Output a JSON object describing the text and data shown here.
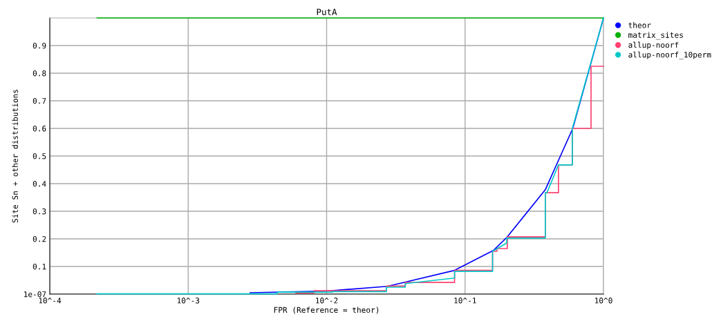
{
  "chart_data": {
    "type": "line",
    "title": "PutA",
    "xlabel": "FPR (Reference = theor)",
    "ylabel": "Site Sn + other distributions",
    "log": "x",
    "xlim": [
      0.0001,
      1
    ],
    "ylim": [
      1e-07,
      1
    ],
    "xticks": [
      {
        "value": 0.0001,
        "label": "10^-4"
      },
      {
        "value": 0.001,
        "label": "10^-3"
      },
      {
        "value": 0.01,
        "label": "10^-2"
      },
      {
        "value": 0.1,
        "label": "10^-1"
      },
      {
        "value": 1,
        "label": "10^0"
      }
    ],
    "yticks": [
      1e-07,
      0.1,
      0.2,
      0.3,
      0.4,
      0.5,
      0.6,
      0.7,
      0.8,
      0.9
    ],
    "grid": true,
    "legend": "top right",
    "marker": "none",
    "line_style": "solid",
    "series": [
      {
        "name": "theor",
        "color": "#0000ff",
        "x": [
          0.0028,
          0.01,
          0.0275,
          0.084,
          0.16,
          0.2,
          0.38,
          0.6,
          1.0
        ],
        "values": [
          0.005,
          0.011,
          0.028,
          0.086,
          0.158,
          0.205,
          0.378,
          0.6,
          1.0
        ]
      },
      {
        "name": "matrix_sites",
        "color": "#00b000",
        "x": [
          0.00022,
          1.0
        ],
        "values": [
          1.0,
          1.0
        ]
      },
      {
        "name": "allup-noorf",
        "color": "#ff4070",
        "x": [
          0.006,
          0.0081,
          0.0081,
          0.027,
          0.027,
          0.037,
          0.037,
          0.084,
          0.084,
          0.158,
          0.158,
          0.17,
          0.17,
          0.202,
          0.202,
          0.38,
          0.38,
          0.473,
          0.473,
          0.596,
          0.596,
          0.813,
          0.813,
          1.0
        ],
        "values": [
          0.004,
          0.004,
          0.012,
          0.012,
          0.029,
          0.029,
          0.042,
          0.042,
          0.086,
          0.086,
          0.155,
          0.155,
          0.165,
          0.165,
          0.207,
          0.207,
          0.367,
          0.367,
          0.468,
          0.468,
          0.6,
          0.6,
          0.825,
          0.825
        ]
      },
      {
        "name": "allup-noorf_10perm",
        "color": "#00c8c8",
        "x": [
          0.00022,
          0.0044,
          0.0044,
          0.011,
          0.011,
          0.027,
          0.027,
          0.037,
          0.037,
          0.084,
          0.084,
          0.158,
          0.158,
          0.2,
          0.2,
          0.38,
          0.38,
          0.39,
          0.473,
          0.596,
          0.596,
          1.0
        ],
        "values": [
          0.001,
          0.001,
          0.007,
          0.007,
          0.009,
          0.009,
          0.025,
          0.025,
          0.038,
          0.058,
          0.082,
          0.082,
          0.155,
          0.185,
          0.203,
          0.203,
          0.367,
          0.367,
          0.468,
          0.468,
          0.6,
          1.0
        ]
      }
    ]
  }
}
